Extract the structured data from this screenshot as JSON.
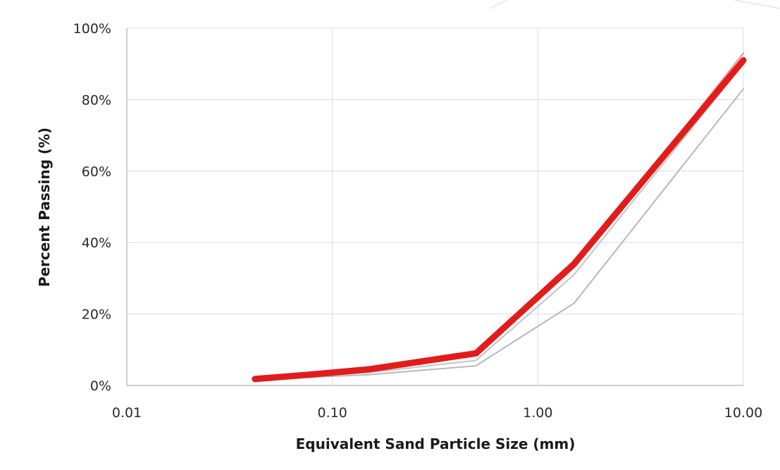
{
  "chart_data": {
    "type": "line",
    "title": "",
    "xlabel": "Equivalent Sand Particle Size (mm)",
    "ylabel": "Percent Passing (%)",
    "x_scale": "log",
    "xlim": [
      0.01,
      10
    ],
    "ylim": [
      0,
      100
    ],
    "x_ticks": [
      0.01,
      0.1,
      1,
      10
    ],
    "x_tick_labels": [
      "0.01",
      "0.10",
      "1.00",
      "10.00"
    ],
    "y_ticks": [
      0,
      20,
      40,
      60,
      80,
      100
    ],
    "y_tick_labels": [
      "0%",
      "20%",
      "40%",
      "60%",
      "80%",
      "100%"
    ],
    "grid": true,
    "legend": "none",
    "series": [
      {
        "color": "#b8b8b8",
        "width": "thin",
        "points": [
          [
            0.042,
            1.5
          ],
          [
            0.08,
            2.3
          ],
          [
            0.15,
            3.0
          ],
          [
            0.5,
            5.5
          ],
          [
            1.5,
            23
          ],
          [
            10,
            83
          ]
        ]
      },
      {
        "color": "#c4c4c4",
        "width": "thin",
        "points": [
          [
            0.042,
            1.6
          ],
          [
            0.08,
            2.6
          ],
          [
            0.15,
            3.6
          ],
          [
            0.5,
            7.0
          ],
          [
            1.5,
            31
          ],
          [
            10,
            90
          ]
        ]
      },
      {
        "color": "#f08a8a",
        "width": "thin",
        "points": [
          [
            0.042,
            1.8
          ],
          [
            0.08,
            3.0
          ],
          [
            0.15,
            4.2
          ],
          [
            0.5,
            8.3
          ],
          [
            1.5,
            33
          ],
          [
            10,
            93
          ]
        ]
      },
      {
        "color": "#e31b1b",
        "width": "thick",
        "points": [
          [
            0.042,
            1.8
          ],
          [
            0.08,
            3.1
          ],
          [
            0.15,
            4.5
          ],
          [
            0.5,
            9.0
          ],
          [
            1.5,
            34
          ],
          [
            10,
            91
          ]
        ]
      }
    ]
  }
}
